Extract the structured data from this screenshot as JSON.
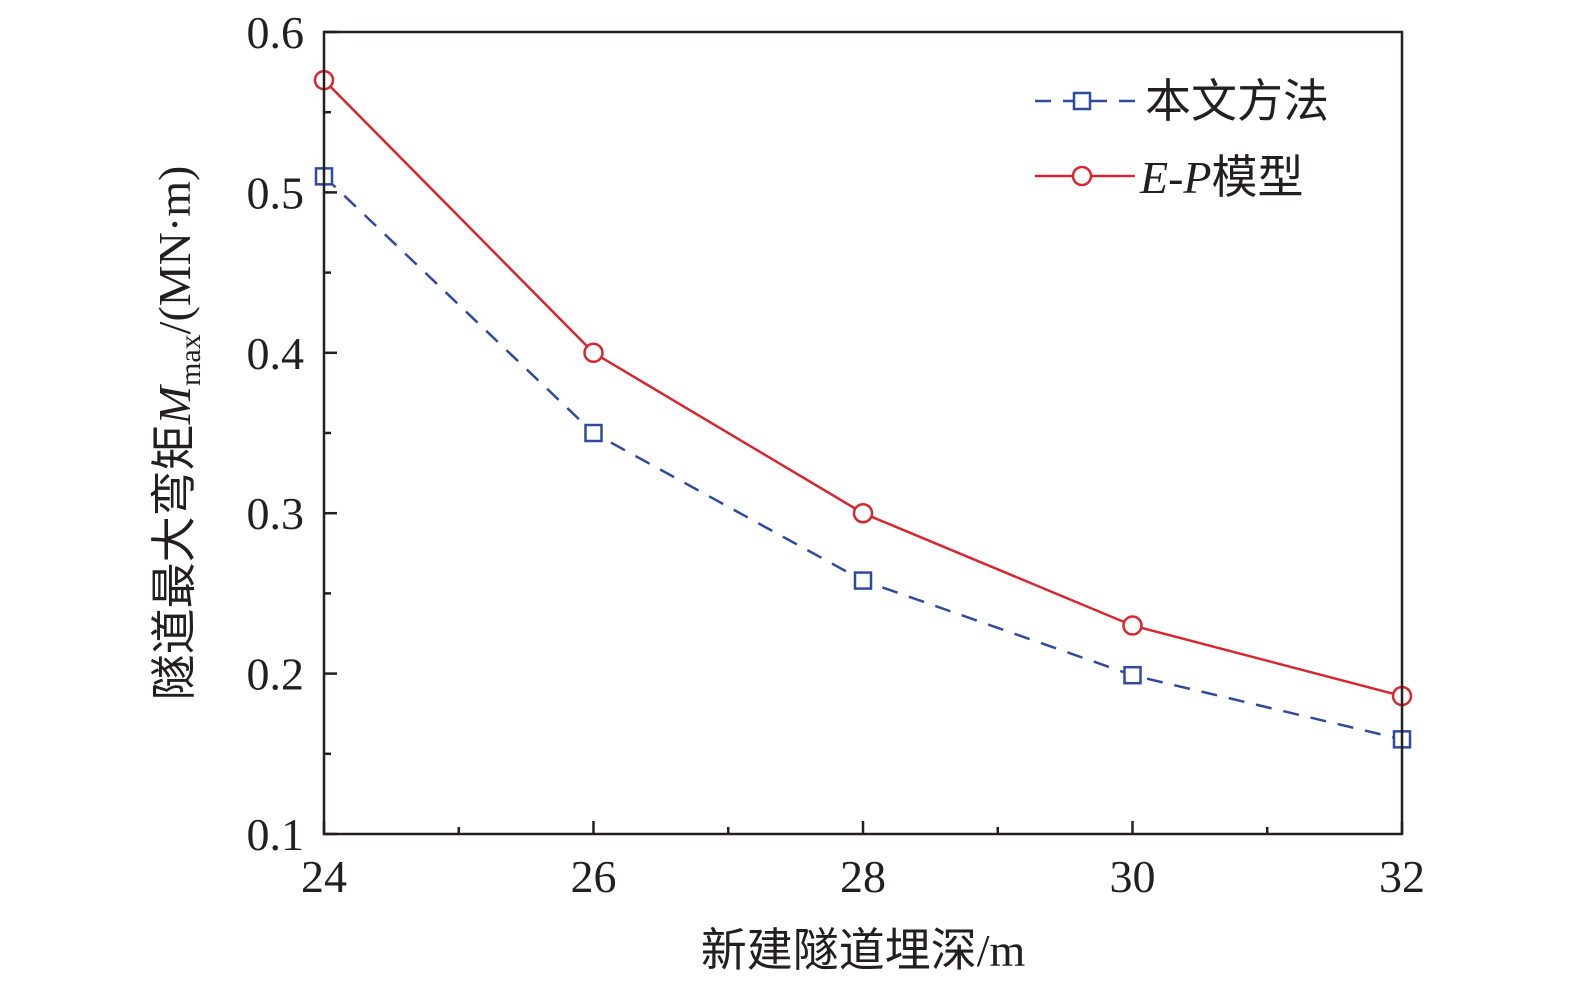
{
  "chart_data": {
    "type": "line",
    "xlabel": "新建隧道埋深/m",
    "ylabel": {
      "prefix": "隧道最大弯矩",
      "symbol": "M",
      "subscript": "max",
      "unit": "/(MN·m)"
    },
    "xlim": [
      24,
      32
    ],
    "ylim": [
      0.1,
      0.6
    ],
    "x_ticks": [
      "24",
      "26",
      "28",
      "30",
      "32"
    ],
    "y_ticks": [
      "0.1",
      "0.2",
      "0.3",
      "0.4",
      "0.5",
      "0.6"
    ],
    "grid": false,
    "legend_position": "top-right",
    "x": [
      24,
      26,
      28,
      30,
      32
    ],
    "series": [
      {
        "name": "本文方法",
        "values": [
          0.51,
          0.35,
          0.258,
          0.199,
          0.159
        ],
        "color": "#2e4a9e",
        "line_style": "dashed",
        "marker": "square"
      },
      {
        "name_italic": "E-P",
        "name_suffix": "模型",
        "values": [
          0.57,
          0.4,
          0.3,
          0.23,
          0.186
        ],
        "color": "#d7262e",
        "line_style": "solid",
        "marker": "circle"
      }
    ]
  }
}
